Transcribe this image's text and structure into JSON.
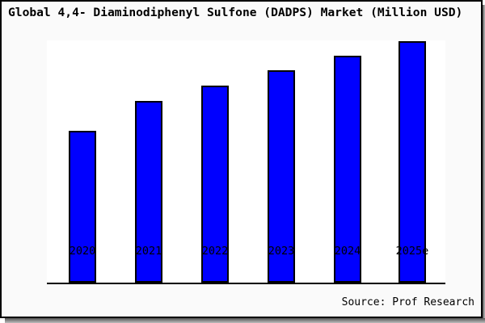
{
  "title": "Global 4,4- Diaminodiphenyl Sulfone (DADPS) Market (Million USD)",
  "source": "Source: Prof Research",
  "colors": {
    "bar_fill": "#0000ff",
    "bar_border": "#000000",
    "panel_border": "#000000",
    "panel_background": "#fafafa",
    "plot_background": "#ffffff",
    "shadow": "#888888",
    "text": "#000000"
  },
  "chart_data": {
    "type": "bar",
    "title": "Global 4,4- Diaminodiphenyl Sulfone (DADPS) Market (Million USD)",
    "categories": [
      "2020",
      "2021",
      "2022",
      "2023",
      "2024",
      "2025e"
    ],
    "values": [
      188,
      225,
      244,
      263,
      281,
      299
    ],
    "values_note": "No y-axis, gridlines or data labels shown; values are relative bar heights in pixels (proportional to market size).",
    "xlabel": "",
    "ylabel": "",
    "ylim": [
      0,
      300
    ],
    "gridlines": false,
    "legend": false,
    "y_axis_visible": false
  }
}
